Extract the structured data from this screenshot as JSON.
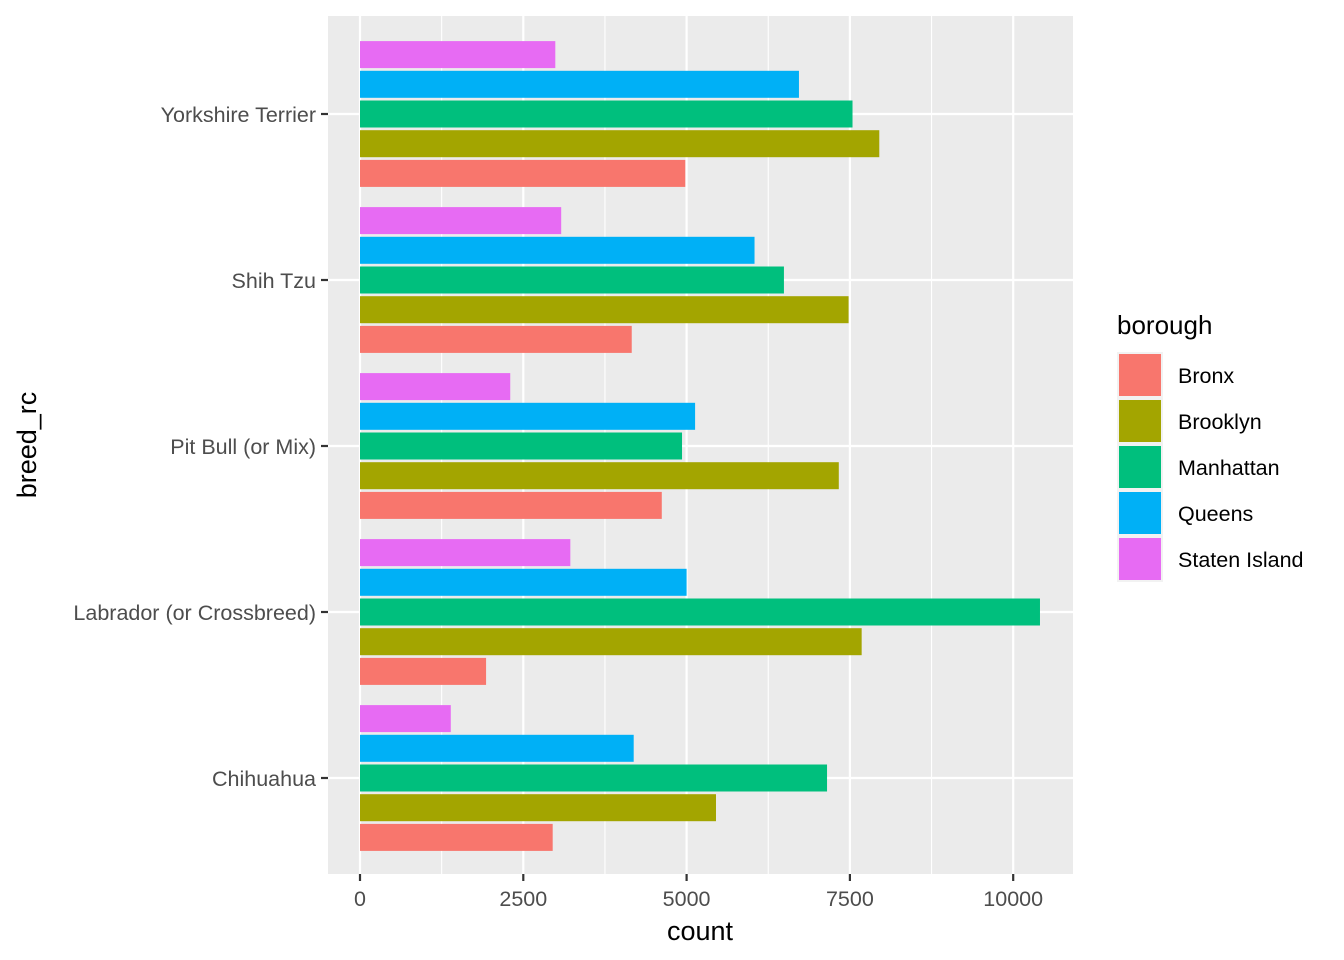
{
  "chart_data": {
    "type": "bar",
    "orientation": "horizontal",
    "xlabel": "count",
    "ylabel": "breed_rc",
    "xlim": [
      -500,
      10900
    ],
    "xticks": [
      0,
      2500,
      5000,
      7500,
      10000
    ],
    "xtick_labels": [
      "0",
      "2500",
      "5000",
      "7500",
      "10000"
    ],
    "categories": [
      "Chihuahua",
      "Labrador (or Crossbreed)",
      "Pit Bull (or Mix)",
      "Shih Tzu",
      "Yorkshire Terrier"
    ],
    "legend": {
      "title": "borough",
      "position": "right"
    },
    "series": [
      {
        "name": "Bronx",
        "color": "#F8766D",
        "values": [
          2950,
          1930,
          4620,
          4160,
          4980
        ]
      },
      {
        "name": "Brooklyn",
        "color": "#A3A500",
        "values": [
          5450,
          7680,
          7330,
          7480,
          7950
        ]
      },
      {
        "name": "Manhattan",
        "color": "#00BF7D",
        "values": [
          7150,
          10410,
          4930,
          6490,
          7540
        ]
      },
      {
        "name": "Queens",
        "color": "#00B0F6",
        "values": [
          4190,
          5000,
          5130,
          6040,
          6720
        ]
      },
      {
        "name": "Staten Island",
        "color": "#E76BF3",
        "values": [
          1390,
          3220,
          2300,
          3080,
          2990
        ]
      }
    ]
  }
}
